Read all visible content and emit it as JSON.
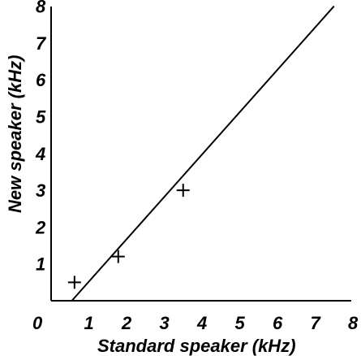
{
  "chart_data": {
    "type": "scatter",
    "xlabel": "Standard speaker (kHz)",
    "ylabel": "New speaker (kHz)",
    "xlim": [
      0,
      8
    ],
    "ylim": [
      0,
      8
    ],
    "x_ticks": [
      "0",
      "1",
      "2",
      "3",
      "4",
      "5",
      "6",
      "7",
      "8"
    ],
    "y_ticks": [
      "1",
      "2",
      "3",
      "4",
      "5",
      "6",
      "7",
      "8"
    ],
    "grid": false,
    "series": [
      {
        "marker": "+",
        "points": [
          {
            "x": 0.62,
            "y": 0.5
          },
          {
            "x": 1.78,
            "y": 1.2
          },
          {
            "x": 3.5,
            "y": 3.0
          }
        ]
      }
    ],
    "line": {
      "x": [
        0.55,
        7.5
      ],
      "y": [
        0.0,
        8.0
      ]
    },
    "colors": {
      "ink": "#000000",
      "background": "#ffffff"
    }
  }
}
